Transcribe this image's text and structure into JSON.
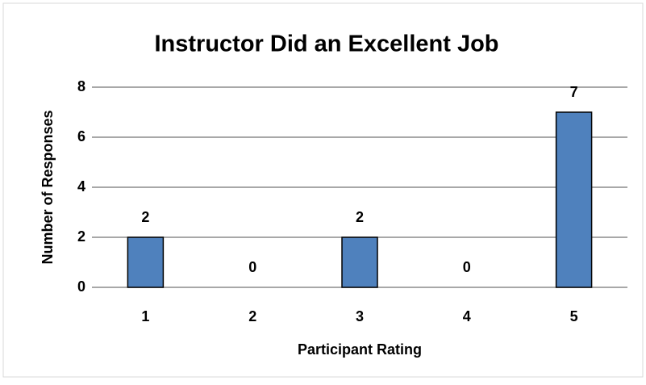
{
  "chart_data": {
    "type": "bar",
    "title": "Instructor Did an Excellent Job",
    "x_label": "Participant Rating",
    "y_label": "Number of Responses",
    "categories": [
      "1",
      "2",
      "3",
      "4",
      "5"
    ],
    "values": [
      2,
      0,
      2,
      0,
      7
    ],
    "color": "#4f81bd",
    "ylim": [
      0,
      8
    ],
    "yticks": [
      0,
      2,
      4,
      6,
      8
    ],
    "grid": true
  }
}
